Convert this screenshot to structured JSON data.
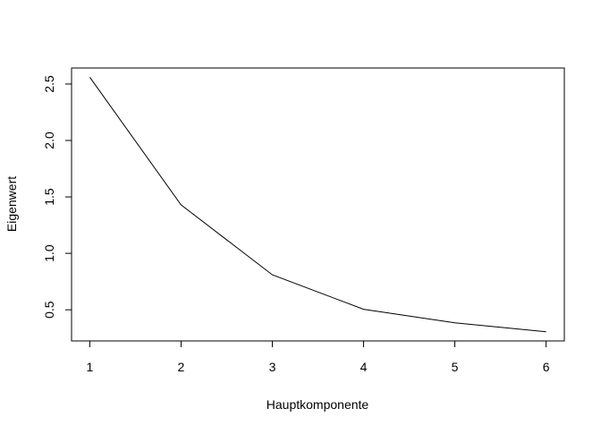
{
  "chart_data": {
    "type": "line",
    "title": "",
    "xlabel": "Hauptkomponente",
    "ylabel": "Eigenwert",
    "x": [
      1,
      2,
      3,
      4,
      5,
      6
    ],
    "values": [
      2.56,
      1.43,
      0.81,
      0.505,
      0.385,
      0.305
    ],
    "xticks": [
      1,
      2,
      3,
      4,
      5,
      6
    ],
    "yticks": [
      0.5,
      1.0,
      1.5,
      2.0,
      2.5
    ],
    "xtick_labels": [
      "1",
      "2",
      "3",
      "4",
      "5",
      "6"
    ],
    "ytick_labels": [
      "0.5",
      "1.0",
      "1.5",
      "2.0",
      "2.5"
    ],
    "xlim": [
      0.8,
      6.2
    ],
    "ylim": [
      0.224,
      2.642
    ],
    "grid": false,
    "line_color": "#000000"
  }
}
